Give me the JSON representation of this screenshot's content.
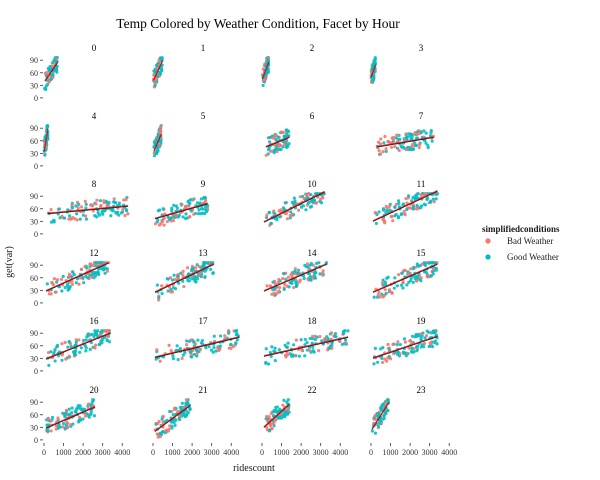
{
  "chart_data": {
    "type": "scatter",
    "title": "Temp Colored by Weather Condition, Facet by Hour",
    "xlabel": "ridescount",
    "ylabel": "get(var)",
    "xlim": [
      0,
      4500
    ],
    "ylim": [
      -5,
      100
    ],
    "x_ticks": [
      0,
      1000,
      2000,
      3000,
      4000
    ],
    "y_ticks": [
      0,
      30,
      60,
      90
    ],
    "x_tick_labels": [
      "0",
      "1000",
      "2000",
      "3000",
      "4000"
    ],
    "y_tick_labels": [
      "0",
      "30",
      "60",
      "90"
    ],
    "grid": false,
    "legend": {
      "title": "simplifiedconditions",
      "position": "right",
      "entries": [
        {
          "name": "Bad Weather",
          "color": "#F8766D"
        },
        {
          "name": "Good Weather",
          "color": "#00BFC4"
        }
      ]
    },
    "trend_line_colors": [
      "#E41A1C",
      "#111111"
    ],
    "facets": [
      {
        "label": "0",
        "xmin": 30,
        "xmax": 700,
        "trend": [
          [
            50,
            40
          ],
          [
            700,
            85
          ]
        ]
      },
      {
        "label": "1",
        "xmin": 20,
        "xmax": 480,
        "trend": [
          [
            30,
            42
          ],
          [
            480,
            88
          ]
        ]
      },
      {
        "label": "2",
        "xmin": 20,
        "xmax": 340,
        "trend": [
          [
            20,
            45
          ],
          [
            340,
            85
          ]
        ]
      },
      {
        "label": "3",
        "xmin": 10,
        "xmax": 230,
        "trend": [
          [
            10,
            50
          ],
          [
            230,
            78
          ]
        ]
      },
      {
        "label": "4",
        "xmin": 10,
        "xmax": 200,
        "trend": [
          [
            10,
            35
          ],
          [
            200,
            88
          ]
        ]
      },
      {
        "label": "5",
        "xmin": 50,
        "xmax": 420,
        "trend": [
          [
            50,
            35
          ],
          [
            420,
            75
          ]
        ]
      },
      {
        "label": "6",
        "xmin": 200,
        "xmax": 1400,
        "trend": [
          [
            200,
            45
          ],
          [
            1400,
            68
          ]
        ]
      },
      {
        "label": "7",
        "xmin": 300,
        "xmax": 3200,
        "trend": [
          [
            300,
            45
          ],
          [
            3200,
            68
          ]
        ]
      },
      {
        "label": "8",
        "xmin": 200,
        "xmax": 4300,
        "trend": [
          [
            200,
            48
          ],
          [
            4300,
            66
          ]
        ]
      },
      {
        "label": "9",
        "xmin": 100,
        "xmax": 2800,
        "trend": [
          [
            100,
            36
          ],
          [
            2800,
            72
          ]
        ]
      },
      {
        "label": "10",
        "xmin": 100,
        "xmax": 3200,
        "trend": [
          [
            100,
            28
          ],
          [
            3200,
            100
          ]
        ]
      },
      {
        "label": "11",
        "xmin": 100,
        "xmax": 3400,
        "trend": [
          [
            100,
            30
          ],
          [
            3400,
            102
          ]
        ]
      },
      {
        "label": "12",
        "xmin": 100,
        "xmax": 3300,
        "trend": [
          [
            100,
            28
          ],
          [
            3300,
            95
          ]
        ]
      },
      {
        "label": "13",
        "xmin": 100,
        "xmax": 3100,
        "trend": [
          [
            100,
            25
          ],
          [
            3100,
            92
          ]
        ]
      },
      {
        "label": "14",
        "xmin": 100,
        "xmax": 3300,
        "trend": [
          [
            100,
            28
          ],
          [
            3300,
            92
          ]
        ]
      },
      {
        "label": "15",
        "xmin": 100,
        "xmax": 3400,
        "trend": [
          [
            100,
            25
          ],
          [
            3400,
            92
          ]
        ]
      },
      {
        "label": "16",
        "xmin": 100,
        "xmax": 3400,
        "trend": [
          [
            100,
            28
          ],
          [
            3400,
            90
          ]
        ]
      },
      {
        "label": "17",
        "xmin": 100,
        "xmax": 4400,
        "trend": [
          [
            100,
            32
          ],
          [
            4400,
            80
          ]
        ]
      },
      {
        "label": "18",
        "xmin": 100,
        "xmax": 4400,
        "trend": [
          [
            100,
            35
          ],
          [
            4400,
            80
          ]
        ]
      },
      {
        "label": "19",
        "xmin": 100,
        "xmax": 3400,
        "trend": [
          [
            100,
            30
          ],
          [
            3400,
            82
          ]
        ]
      },
      {
        "label": "20",
        "xmin": 100,
        "xmax": 2600,
        "trend": [
          [
            100,
            28
          ],
          [
            2600,
            78
          ]
        ]
      },
      {
        "label": "21",
        "xmin": 100,
        "xmax": 1900,
        "trend": [
          [
            100,
            20
          ],
          [
            1900,
            82
          ]
        ]
      },
      {
        "label": "22",
        "xmin": 100,
        "xmax": 1400,
        "trend": [
          [
            100,
            30
          ],
          [
            1400,
            85
          ]
        ]
      },
      {
        "label": "23",
        "xmin": 50,
        "xmax": 900,
        "trend": [
          [
            50,
            25
          ],
          [
            900,
            88
          ]
        ]
      }
    ]
  }
}
